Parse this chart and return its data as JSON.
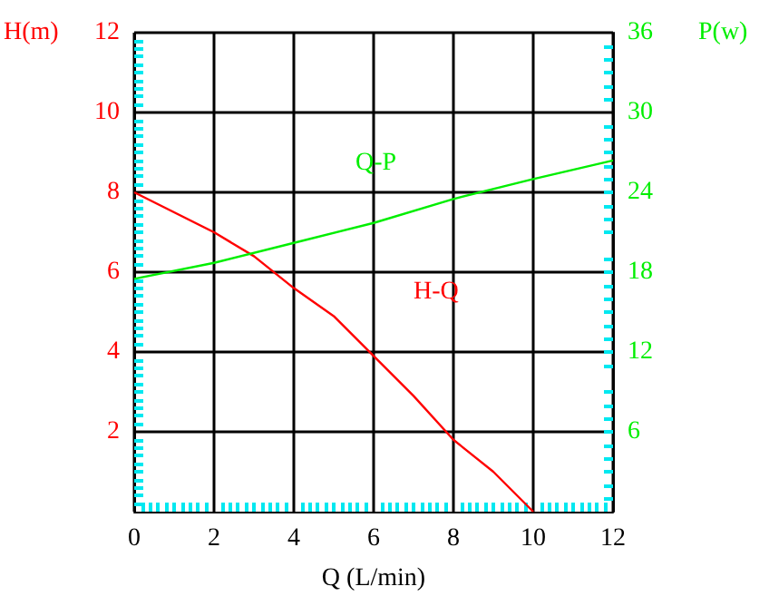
{
  "chart_data": {
    "type": "line",
    "xlabel": "Q (L/min)",
    "ylabel": "H(m)",
    "y2label": "P(w)",
    "series": [
      {
        "name": "H-Q",
        "color": "#ff0000",
        "x": [
          0,
          2,
          3,
          4,
          5,
          6,
          7,
          8,
          9,
          10
        ],
        "values": [
          8,
          7,
          6.4,
          5.6,
          4.9,
          3.9,
          2.9,
          1.8,
          1,
          0
        ]
      },
      {
        "name": "Q-P",
        "color": "#00ee00",
        "axis": "y2",
        "x": [
          0,
          2,
          4,
          6,
          8,
          10,
          12
        ],
        "values": [
          17.5,
          18.7,
          20.2,
          21.7,
          23.5,
          25,
          26.4
        ]
      }
    ],
    "xlim": [
      0,
      12
    ],
    "xticks": [
      0,
      2,
      4,
      6,
      8,
      10,
      12
    ],
    "ylim": [
      0,
      12
    ],
    "yticks": [
      2,
      4,
      6,
      8,
      10,
      12
    ],
    "y2lim": [
      0,
      36
    ],
    "y2ticks": [
      6,
      12,
      18,
      24,
      30,
      36
    ],
    "grid": true,
    "legend": false,
    "marker": "none",
    "line_style": "solid"
  }
}
